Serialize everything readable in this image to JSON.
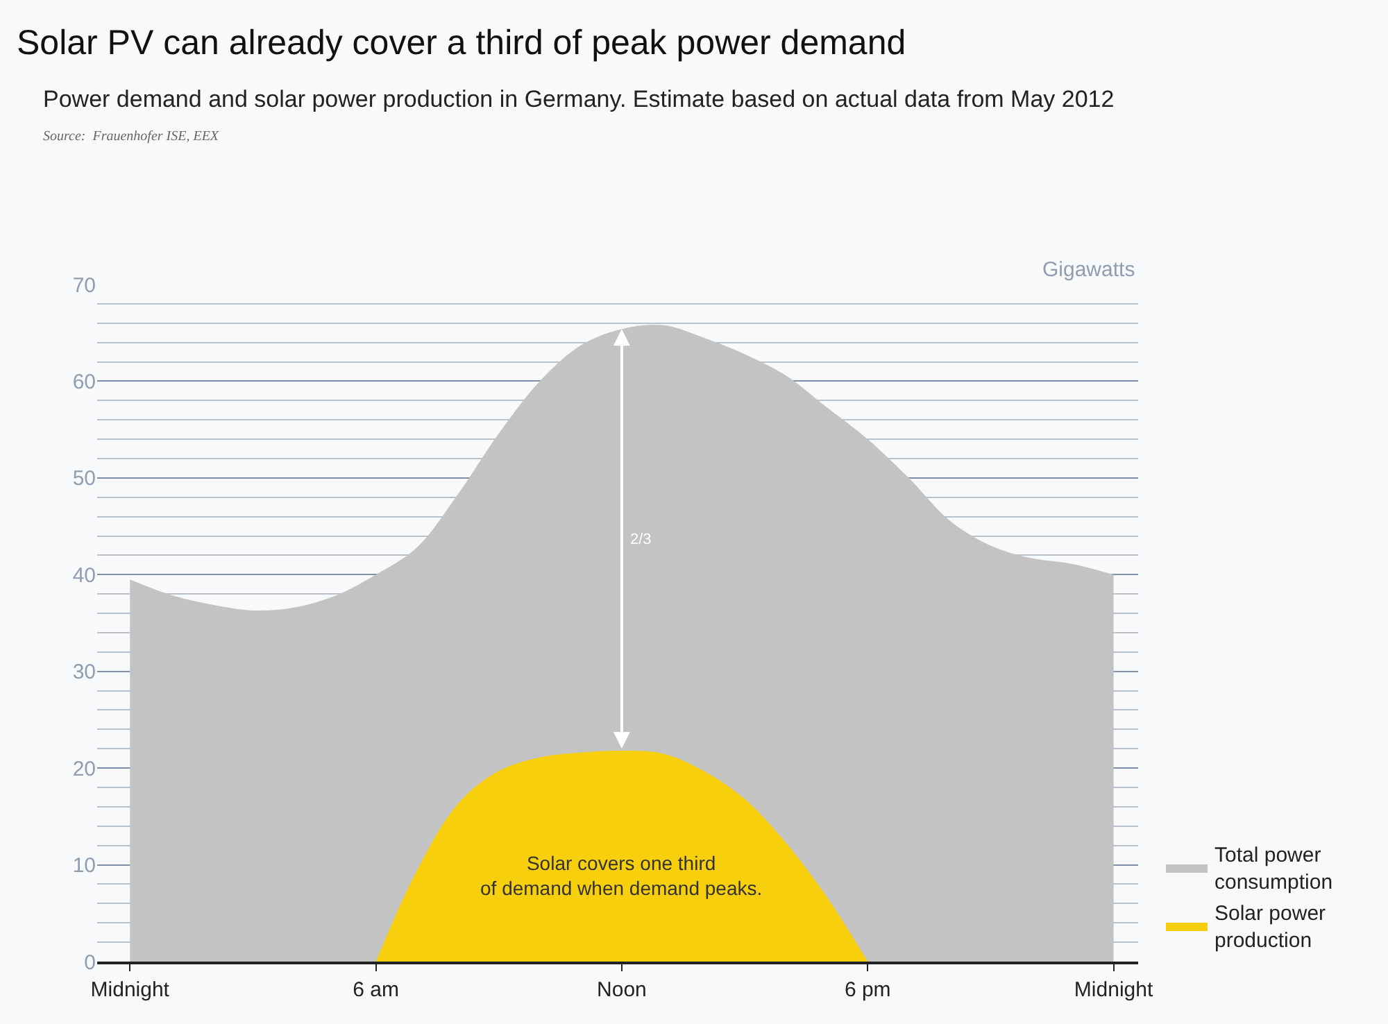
{
  "chart_data": {
    "type": "area",
    "title": "Solar PV can already cover a third of peak power demand",
    "subtitle": "Power demand and solar power production in Germany. Estimate based on actual data from May 2012",
    "ylabel": "Gigawatts",
    "categories": [
      "Midnight",
      null,
      null,
      null,
      null,
      null,
      "6 am",
      null,
      null,
      null,
      null,
      null,
      "Noon",
      null,
      null,
      null,
      null,
      null,
      "6 pm",
      null,
      null,
      null,
      null,
      null,
      "Midnight"
    ],
    "series": [
      {
        "name": "Total power\nconsumption",
        "color": "#c3c3c3",
        "values": [
          39.5,
          37.9,
          36.9,
          36.3,
          36.6,
          37.8,
          40,
          42.8,
          48.3,
          54.6,
          60,
          63.7,
          65.4,
          65.8,
          64.5,
          62.8,
          60.6,
          57.3,
          54,
          50,
          45.6,
          43,
          41.7,
          41.1,
          40
        ]
      },
      {
        "name": "Solar power\nproduction",
        "color": "#f8cf0c",
        "values": [
          null,
          null,
          null,
          null,
          null,
          null,
          0,
          9.4,
          16.3,
          19.7,
          21.1,
          21.6,
          21.8,
          21.5,
          19.7,
          16.8,
          12.3,
          6.7,
          0,
          null,
          null,
          null,
          null,
          null,
          null
        ]
      }
    ],
    "ylim": [
      0,
      70
    ],
    "yticks": [
      0,
      {
        "value": 2,
        "label": null
      },
      {
        "value": 4,
        "label": null
      },
      {
        "value": 6,
        "label": null
      },
      {
        "value": 8,
        "label": null
      },
      10,
      {
        "value": 12,
        "label": null
      },
      {
        "value": 14,
        "label": null
      },
      {
        "value": 16,
        "label": null
      },
      {
        "value": 18,
        "label": null
      },
      20,
      {
        "value": 22,
        "label": null
      },
      {
        "value": 24,
        "label": null
      },
      {
        "value": 26,
        "label": null
      },
      {
        "value": 28,
        "label": null
      },
      30,
      {
        "value": 32,
        "label": null
      },
      {
        "value": 34,
        "label": null
      },
      {
        "value": 36,
        "label": null
      },
      {
        "value": 38,
        "label": null
      },
      40,
      {
        "value": 42,
        "label": null
      },
      {
        "value": 44,
        "label": null
      },
      {
        "value": 46,
        "label": null
      },
      {
        "value": 48,
        "label": null
      },
      50,
      {
        "value": 52,
        "label": null
      },
      {
        "value": 54,
        "label": null
      },
      {
        "value": 56,
        "label": null
      },
      {
        "value": 58,
        "label": null
      },
      60,
      {
        "value": 62,
        "label": null
      },
      {
        "value": 64,
        "label": null
      },
      {
        "value": 66,
        "label": null
      },
      {
        "value": 68,
        "label": null
      },
      70
    ],
    "grid": "y",
    "legend": "bottom right",
    "annotations": [
      "Source:  Frauenhofer ISE, EEX",
      "Solar covers one third\nof demand when demand peaks.",
      "2/3"
    ]
  }
}
